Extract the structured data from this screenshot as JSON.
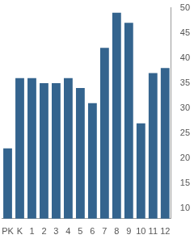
{
  "chart_data": {
    "type": "bar",
    "categories": [
      "PK",
      "K",
      "1",
      "2",
      "3",
      "4",
      "5",
      "6",
      "7",
      "8",
      "9",
      "10",
      "11",
      "12"
    ],
    "values": [
      22,
      36,
      36,
      35,
      35,
      36,
      34,
      31,
      42,
      49,
      47,
      27,
      37,
      38
    ],
    "color": "#34648e",
    "ylim": [
      8,
      50
    ],
    "yticks": [
      10,
      15,
      20,
      25,
      30,
      35,
      40,
      45,
      50
    ],
    "grid": false
  }
}
